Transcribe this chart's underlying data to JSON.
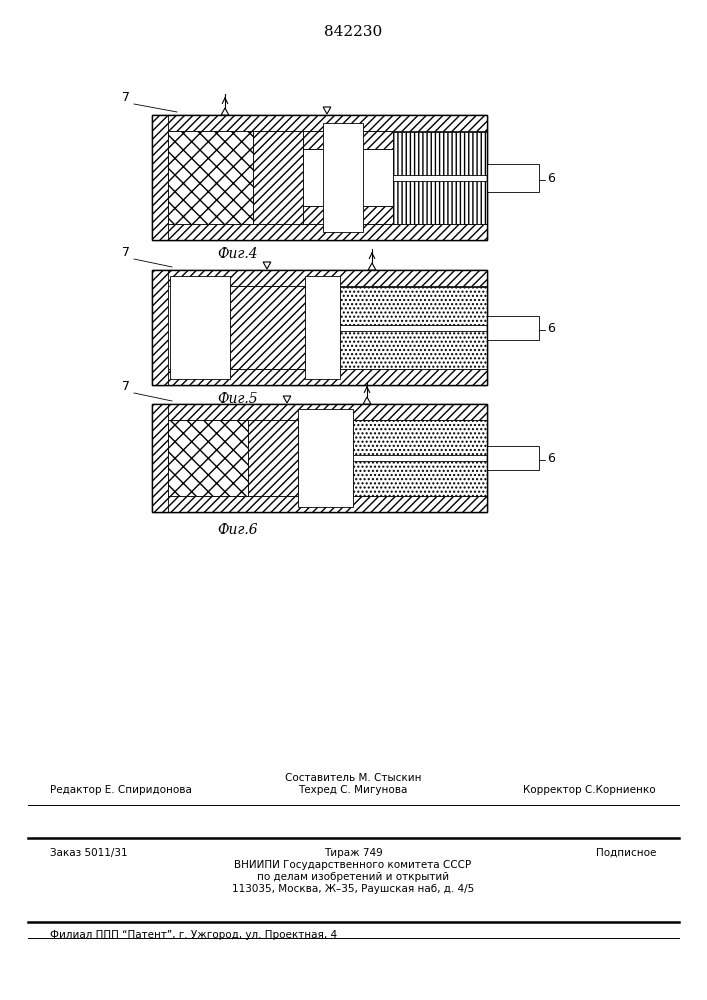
{
  "patent_number": "842230",
  "bg": "#ffffff",
  "lc": "#000000",
  "figure_labels": [
    "Фиг.4",
    "Фиг.5",
    "Фиг.6"
  ],
  "label_7": "7",
  "label_6": "6",
  "footer_line1_left": "Редактор Е. Спиридонова",
  "footer_line1_center": "Составитель М. Стыскин",
  "footer_line1_right": "Корректор С.Корниенко",
  "footer_line2_center": "Техред С. Мигунова",
  "footer_order": "Заказ 5011/31",
  "footer_tirazh": "Тираж 749",
  "footer_podpisnoe": "Подписное",
  "footer_vniip1": "ВНИИПИ Государственного комитета СССР",
  "footer_vniip2": "по делам изобретений и открытий",
  "footer_vniip3": "113035, Москва, Ж–35, Раушская наб, д. 4/5",
  "footer_filial": "Филиал ППП “Патент”, г. Ужгород, ул. Проектная, 4"
}
